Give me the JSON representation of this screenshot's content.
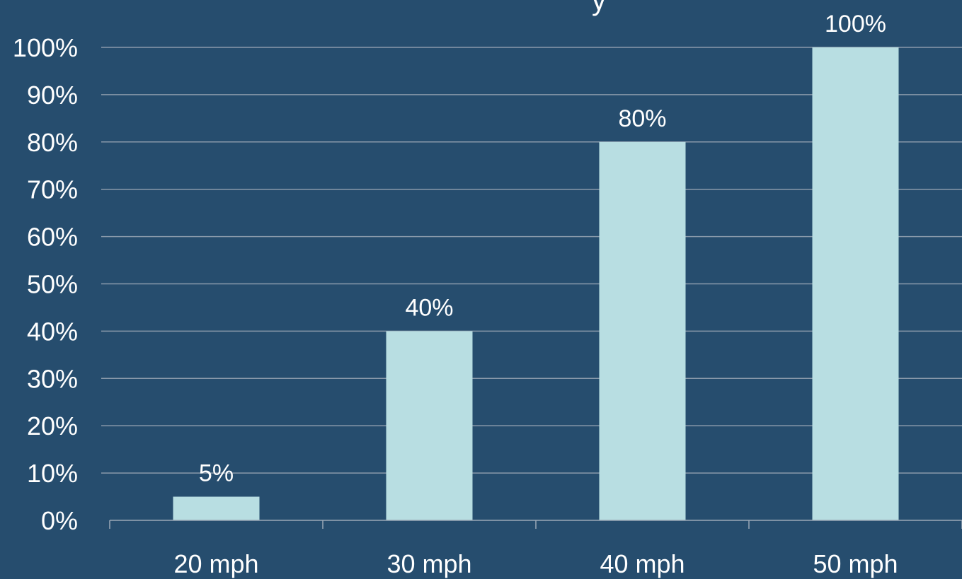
{
  "chart_data": {
    "type": "bar",
    "categories": [
      "20 mph",
      "30 mph",
      "40 mph",
      "50 mph"
    ],
    "values": [
      5,
      40,
      80,
      100
    ],
    "data_labels": [
      "5%",
      "40%",
      "80%",
      "100%"
    ],
    "y_ticks": [
      "0%",
      "10%",
      "20%",
      "30%",
      "40%",
      "50%",
      "60%",
      "70%",
      "80%",
      "90%",
      "100%"
    ],
    "ylim": [
      0,
      100
    ],
    "grid": true,
    "legend": "none",
    "title_visible_fragment": "y"
  },
  "colors": {
    "background": "#264d6e",
    "bar": "#b8dee2",
    "grid": "#8a9aab",
    "axis": "#9aa8b6",
    "text": "#ffffff"
  }
}
